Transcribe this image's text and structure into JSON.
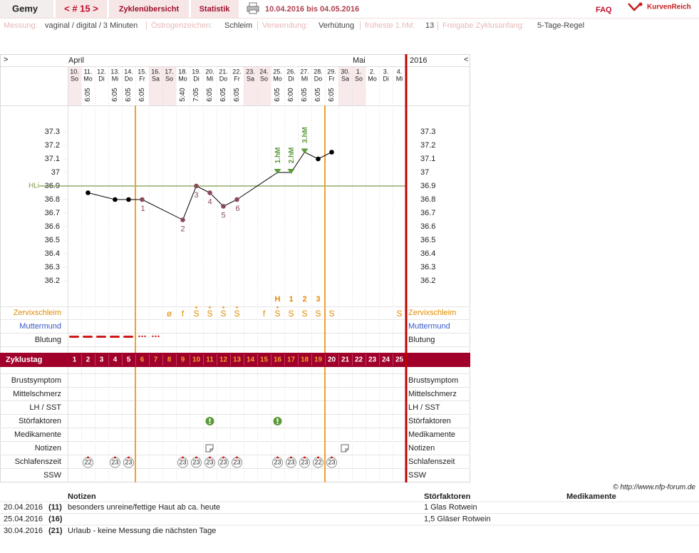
{
  "header": {
    "user": "Gemy",
    "cycle_nav": "< # 15 >",
    "tabs": [
      "Zyklenübersicht",
      "Statistik"
    ],
    "period": "10.04.2016 bis 04.05.2016",
    "faq": "FAQ",
    "logo": "KurvenReich"
  },
  "settings": [
    {
      "label": "Messung:",
      "value": "vaginal / digital / 3 Minuten"
    },
    {
      "label": "Östrogenzeichen:",
      "value": "Schleim"
    },
    {
      "label": "Verwendung:",
      "value": "Verhütung"
    },
    {
      "label": "früheste 1.hM:",
      "value": 13
    },
    {
      "label": "Freigabe Zyklusanfang:",
      "value": "5-Tage-Regel"
    }
  ],
  "chart_data": {
    "type": "line",
    "nav_prev": ">",
    "nav_next": "<",
    "year": "2016",
    "month_labels": [
      "April",
      null,
      null,
      null,
      null,
      null,
      null,
      null,
      null,
      null,
      null,
      null,
      null,
      null,
      null,
      null,
      null,
      null,
      null,
      null,
      null,
      "Mai",
      null,
      null,
      null
    ],
    "dates": [
      "10.",
      "11.",
      "12.",
      "13.",
      "14.",
      "15.",
      "16.",
      "17.",
      "18.",
      "19.",
      "20.",
      "21.",
      "22.",
      "23.",
      "24.",
      "25.",
      "26.",
      "27.",
      "28.",
      "29.",
      "30.",
      "1.",
      "2.",
      "3.",
      "4."
    ],
    "weekdays": [
      "So",
      "Mo",
      "Di",
      "Mi",
      "Do",
      "Fr",
      "Sa",
      "So",
      "Mo",
      "Di",
      "Mi",
      "Do",
      "Fr",
      "Sa",
      "So",
      "Mo",
      "Di",
      "Mi",
      "Do",
      "Fr",
      "Sa",
      "So",
      "Mo",
      "Di",
      "Mi"
    ],
    "times": [
      null,
      "6:05",
      null,
      "6:05",
      "6:05",
      "6:05",
      null,
      null,
      "5:40",
      "7:05",
      "6:05",
      "6:05",
      "6:05",
      null,
      null,
      "6:05",
      "6:00",
      "6:05",
      "6:05",
      "6:05",
      null,
      null,
      null,
      null,
      null
    ],
    "cycle_day_label": "Zyklustag",
    "cycle_days": [
      1,
      2,
      3,
      4,
      5,
      6,
      7,
      8,
      9,
      10,
      11,
      12,
      13,
      14,
      15,
      16,
      17,
      18,
      19,
      20,
      21,
      22,
      23,
      24,
      25
    ],
    "fertile_window": [
      6,
      19
    ],
    "x": [
      2,
      4,
      5,
      6,
      9,
      10,
      11,
      12,
      13,
      16,
      17,
      18,
      19,
      20
    ],
    "values": [
      36.85,
      36.8,
      36.8,
      36.8,
      36.65,
      36.9,
      36.85,
      36.75,
      36.8,
      37.0,
      37.0,
      37.15,
      37.1,
      37.15
    ],
    "xlim": [
      0.5,
      25.5
    ],
    "ylim": [
      36.0,
      37.5
    ],
    "yticks": [
      36.2,
      36.3,
      36.4,
      36.5,
      36.6,
      36.7,
      36.8,
      36.9,
      37,
      37.1,
      37.2,
      37.3
    ],
    "color": "#000000",
    "low_color": "#8b4a5a",
    "hm_color": "#5a9a3a",
    "coverline_color": "#7a9a4a",
    "coverline": {
      "value": 36.9,
      "label": "HLi"
    },
    "low_labels": [
      {
        "x": 6,
        "label": "1"
      },
      {
        "x": 9,
        "label": "2"
      },
      {
        "x": 10,
        "label": "3"
      },
      {
        "x": 11,
        "label": "4"
      },
      {
        "x": 12,
        "label": "5"
      },
      {
        "x": 13,
        "label": "6"
      }
    ],
    "hm_labels": [
      {
        "x": 16,
        "label": "1.hM"
      },
      {
        "x": 17,
        "label": "2.hM"
      },
      {
        "x": 18,
        "label": "3.hM"
      }
    ],
    "evaluation_marks": [
      {
        "x": 16,
        "label": "H"
      },
      {
        "x": 17,
        "label": "1"
      },
      {
        "x": 18,
        "label": "2"
      },
      {
        "x": 19,
        "label": "3"
      }
    ],
    "rows": [
      "Zervixschleim",
      "Muttermund",
      "Blutung",
      "Brustsymptom",
      "Mittelschmerz",
      "LH / SST",
      "Störfaktoren",
      "Medikamente",
      "Notizen",
      "Schlafenszeit",
      "SSW"
    ],
    "cervix": [
      null,
      null,
      null,
      null,
      null,
      null,
      null,
      {
        "symbol": "ø"
      },
      {
        "symbol": "f"
      },
      {
        "symbol": "S",
        "mark": "+"
      },
      {
        "symbol": "S",
        "mark": "+"
      },
      {
        "symbol": "S",
        "mark": "+"
      },
      {
        "symbol": "S",
        "mark": "+"
      },
      null,
      {
        "symbol": "f"
      },
      {
        "symbol": "S",
        "mark": "+"
      },
      {
        "symbol": "S"
      },
      {
        "symbol": "S"
      },
      {
        "symbol": "S"
      },
      {
        "symbol": "S"
      },
      null,
      null,
      null,
      null,
      {
        "symbol": "S"
      }
    ],
    "sleep": [
      null,
      "22",
      null,
      "23",
      "23",
      null,
      null,
      null,
      "23",
      "23",
      "23",
      "23",
      "23",
      null,
      null,
      "23",
      "23",
      "23",
      "22",
      "23",
      null,
      null,
      null,
      null,
      null
    ]
  },
  "notes_table": {
    "headers": [
      "Notizen",
      "Störfaktoren",
      "Medikamente"
    ],
    "rows": [
      [
        "20.04.2016",
        "(11)",
        "besonders unreine/fettige Haut ab ca. heute",
        "1 Glas Rotwein"
      ],
      [
        "25.04.2016",
        "(16)",
        null,
        "1,5 Gläser Rotwein"
      ],
      [
        "30.04.2016",
        "(21)",
        "Urlaub - keine Messung die nächsten Tage",
        null
      ]
    ]
  },
  "credit": "© http://www.nfp-forum.de"
}
